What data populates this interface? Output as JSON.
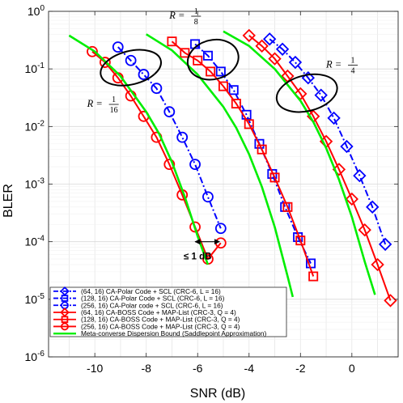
{
  "chart_data": {
    "type": "line",
    "xlabel": "SNR (dB)",
    "ylabel": "BLER",
    "xlim": [
      -11.8,
      1.8
    ],
    "ylim": [
      1e-06,
      1
    ],
    "yscale": "log",
    "grid": true,
    "legend_position": "bottom-left",
    "x_ticks": [
      -10,
      -8,
      -6,
      -4,
      -2,
      0
    ],
    "x_tick_labels": [
      "-10",
      "-8",
      "-6",
      "-4",
      "-2",
      "0"
    ],
    "y_ticks": [
      1,
      0.1,
      0.01,
      0.001,
      0.0001,
      1e-05,
      1e-06
    ],
    "y_tick_labels": [
      {
        "base": "10",
        "exp": "0"
      },
      {
        "base": "10",
        "exp": "-1"
      },
      {
        "base": "10",
        "exp": "-2"
      },
      {
        "base": "10",
        "exp": "-3"
      },
      {
        "base": "10",
        "exp": "-4"
      },
      {
        "base": "10",
        "exp": "-5"
      },
      {
        "base": "10",
        "exp": "-6"
      }
    ],
    "series": [
      {
        "name": "(64, 16) CA-Polar Code + SCL (CRC-6, L = 16)",
        "color": "#0000ff",
        "style": "dashdot",
        "marker": "diamond",
        "x": [
          -3.2,
          -2.7,
          -2.2,
          -1.7,
          -1.2,
          -0.7,
          -0.2,
          0.3,
          0.8,
          1.3
        ],
        "y": [
          0.33,
          0.22,
          0.13,
          0.07,
          0.035,
          0.014,
          0.0045,
          0.0014,
          0.0004,
          9e-05
        ]
      },
      {
        "name": "(128, 16) CA-Polar Code + SCL (CRC-6, L = 16)",
        "color": "#0000ff",
        "style": "dashdot",
        "marker": "square",
        "x": [
          -6.1,
          -5.6,
          -5.1,
          -4.6,
          -4.1,
          -3.6,
          -3.1,
          -2.6,
          -2.1,
          -1.6
        ],
        "y": [
          0.27,
          0.17,
          0.09,
          0.043,
          0.016,
          0.005,
          0.0015,
          0.0004,
          0.00012,
          4.2e-05
        ]
      },
      {
        "name": "(256, 16) CA-Polar code + SCL (CRC-6, L = 16)",
        "color": "#0000ff",
        "style": "dashdot",
        "marker": "circle",
        "x": [
          -9.1,
          -8.6,
          -8.1,
          -7.6,
          -7.1,
          -6.6,
          -6.1,
          -5.6,
          -5.1
        ],
        "y": [
          0.24,
          0.14,
          0.08,
          0.046,
          0.018,
          0.0065,
          0.0022,
          0.0006,
          0.00017
        ]
      },
      {
        "name": "(64, 16) CA-BOSS Code + MAP-List (CRC-3, Q = 4)",
        "color": "#ff0000",
        "style": "solid",
        "marker": "diamond",
        "x": [
          -4.0,
          -3.5,
          -3.0,
          -2.5,
          -2.0,
          -1.5,
          -1.0,
          -0.5,
          0.0,
          0.5,
          1.0,
          1.5
        ],
        "y": [
          0.38,
          0.25,
          0.15,
          0.075,
          0.037,
          0.015,
          0.0055,
          0.0018,
          0.00055,
          0.00016,
          4e-05,
          9.5e-06
        ]
      },
      {
        "name": "(128, 16) CA-BOSS Code + MAP-List (CRC-3, Q = 4)",
        "color": "#ff0000",
        "style": "solid",
        "marker": "square",
        "x": [
          -7.0,
          -6.5,
          -6.0,
          -5.5,
          -5.0,
          -4.5,
          -4.0,
          -3.5,
          -3.0,
          -2.5,
          -2.0,
          -1.5
        ],
        "y": [
          0.3,
          0.19,
          0.14,
          0.09,
          0.05,
          0.025,
          0.011,
          0.004,
          0.0013,
          0.0004,
          0.000105,
          2.5e-05
        ]
      },
      {
        "name": "(256, 16) CA-BOSS Code + MAP-List (CRC-3, Q = 4)",
        "color": "#ff0000",
        "style": "solid",
        "marker": "circle",
        "x": [
          -10.1,
          -9.6,
          -9.1,
          -8.6,
          -8.1,
          -7.6,
          -7.1,
          -6.6,
          -6.1,
          -5.6,
          -5.1
        ],
        "y": [
          0.2,
          0.13,
          0.07,
          0.034,
          0.015,
          0.0065,
          0.0022,
          0.00065,
          0.00018,
          5e-05,
          9.5e-05
        ]
      },
      {
        "name": "Meta-converse Dispersion Bound (Saddlepoint Approximation)",
        "color": "#00ee00",
        "style": "solid",
        "marker": "none",
        "curves": [
          {
            "x": [
              -11.0,
              -10.0,
              -9.0,
              -8.0,
              -7.5,
              -7.0,
              -6.5,
              -6.0,
              -5.6
            ],
            "y": [
              0.38,
              0.2,
              0.075,
              0.018,
              0.0075,
              0.0024,
              0.0006,
              0.000125,
              4e-05
            ]
          },
          {
            "x": [
              -8.0,
              -7.0,
              -6.0,
              -5.0,
              -4.5,
              -4.0,
              -3.5,
              -3.0,
              -2.5,
              -2.3
            ],
            "y": [
              0.4,
              0.21,
              0.08,
              0.022,
              0.0095,
              0.0033,
              0.0009,
              0.00018,
              2.5e-05,
              1.1e-05
            ]
          },
          {
            "x": [
              -5.0,
              -4.0,
              -3.0,
              -2.0,
              -1.5,
              -1.0,
              -0.5,
              0.0,
              0.5,
              0.9
            ],
            "y": [
              0.45,
              0.25,
              0.1,
              0.028,
              0.012,
              0.0042,
              0.0012,
              0.00027,
              4.5e-05,
              1.2e-05
            ]
          }
        ]
      }
    ],
    "annotations": {
      "rate_labels": [
        {
          "lhs": "R =",
          "num": "1",
          "den": "16",
          "x": -10.3,
          "y": 0.025
        },
        {
          "lhs": "R =",
          "num": "1",
          "den": "8",
          "x": -7.1,
          "y": 0.85
        },
        {
          "lhs": "R =",
          "num": "1",
          "den": "4",
          "x": -1.0,
          "y": 0.12
        }
      ],
      "ellipses": [
        {
          "cx": -8.6,
          "cy": 0.105,
          "rx": 1.2,
          "ry_decades": 0.29
        },
        {
          "cx": -5.4,
          "cy": 0.145,
          "rx": 1.0,
          "ry_decades": 0.34
        },
        {
          "cx": -1.75,
          "cy": 0.038,
          "rx": 1.2,
          "ry_decades": 0.31
        }
      ],
      "gap_text": "≤ 1 dB",
      "gap_arrow": {
        "x1": -6.1,
        "x2": -5.15,
        "y": 0.0001
      }
    }
  }
}
